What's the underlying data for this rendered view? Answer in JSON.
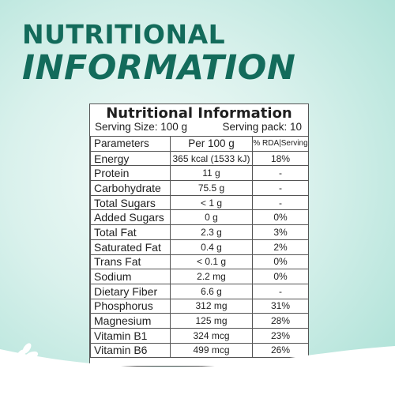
{
  "headline": {
    "line1": "NUTRITIONAL",
    "line2": "INFORMATION"
  },
  "panel": {
    "title": "Nutritional Information",
    "serving_size": "Serving Size: 100 g",
    "serving_pack": "Serving pack: 10"
  },
  "table": {
    "headers": [
      "Parameters",
      "Per 100 g",
      "% RDA|Serving"
    ],
    "rows": [
      [
        "Energy",
        "365 kcal (1533 kJ)",
        "18%"
      ],
      [
        "Protein",
        "11 g",
        "-"
      ],
      [
        "Carbohydrate",
        "75.5 g",
        "-"
      ],
      [
        "Total Sugars",
        "< 1 g",
        "-"
      ],
      [
        "Added Sugars",
        "0 g",
        "0%"
      ],
      [
        "Total Fat",
        "2.3 g",
        "3%"
      ],
      [
        "Saturated Fat",
        "0.4 g",
        "2%"
      ],
      [
        "Trans Fat",
        "< 0.1 g",
        "0%"
      ],
      [
        "Sodium",
        "2.2 mg",
        "0%"
      ],
      [
        "Dietary Fiber",
        "6.6 g",
        "-"
      ],
      [
        "Phosphorus",
        "312 mg",
        "31%"
      ],
      [
        "Magnesium",
        "125 mg",
        "28%"
      ],
      [
        "Vitamin B1",
        "324 mcg",
        "23%"
      ],
      [
        "Vitamin B6",
        "499 mcg",
        "26%"
      ]
    ]
  },
  "colors": {
    "brand": "#136b5b",
    "background": "#d9f1ec",
    "wave": "#ffffff"
  },
  "icons": [
    "wheat-icon-left",
    "wheat-icon-right"
  ]
}
